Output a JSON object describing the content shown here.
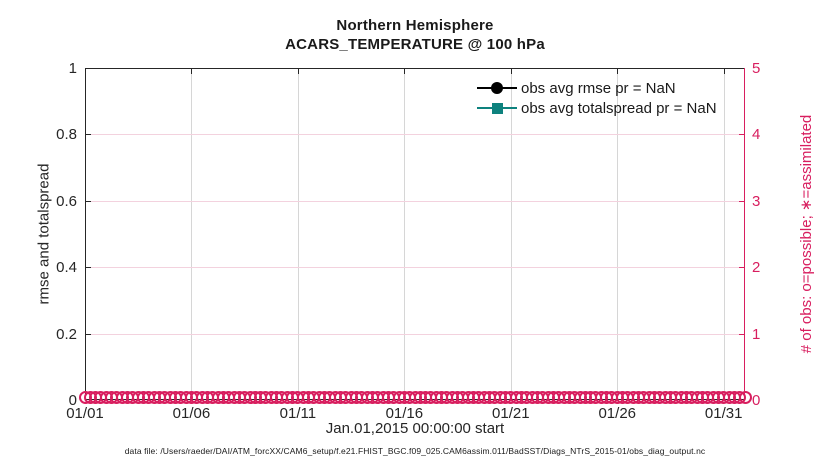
{
  "title": {
    "line1": "Northern Hemisphere",
    "line2": "ACARS_TEMPERATURE @ 100 hPa"
  },
  "axes": {
    "xlabel": "Jan.01,2015 00:00:00 start",
    "ylabel_left": "rmse and totalspread",
    "ylabel_right": "# of obs: o=possible; ∗=assimilated",
    "x_tick_labels": [
      "01/01",
      "01/06",
      "01/11",
      "01/16",
      "01/21",
      "01/26",
      "01/31"
    ],
    "y_left_tick_labels": [
      "0",
      "0.2",
      "0.4",
      "0.6",
      "0.8",
      "1"
    ],
    "y_right_tick_labels": [
      "0",
      "1",
      "2",
      "3",
      "4",
      "5"
    ]
  },
  "legend": [
    {
      "label": "obs avg rmse pr = NaN",
      "color": "#000000",
      "marker": "circle"
    },
    {
      "label": "obs avg totalspread pr = NaN",
      "color": "#0e827e",
      "marker": "square"
    }
  ],
  "footnote": "data file: /Users/raeder/DAI/ATM_forcXX/CAM6_setup/f.e21.FHIST_BGC.f09_025.CAM6assim.011/BadSST/Diags_NTrS_2015-01/obs_diag_output.nc",
  "colors": {
    "magenta": "#d81e5f",
    "teal": "#0e827e",
    "black_series": "#000000",
    "grid_vertical": "#d6d6d6",
    "grid_horizontal": "#f3d2de",
    "axis_dark": "#262626"
  },
  "chart_data": {
    "type": "line",
    "title": "Northern Hemisphere — ACARS_TEMPERATURE @ 100 hPa",
    "xlabel": "Jan.01,2015 00:00:00 start",
    "ylabel_left": "rmse and totalspread",
    "ylabel_right": "# of obs: o=possible; ∗=assimilated",
    "x_tick_labels": [
      "01/01",
      "01/06",
      "01/11",
      "01/16",
      "01/21",
      "01/26",
      "01/31"
    ],
    "x_range_days": [
      0,
      31
    ],
    "ylim_left": [
      0,
      1
    ],
    "ylim_right": [
      0,
      5
    ],
    "grid": true,
    "legend_position": "top-right-inside",
    "series": [
      {
        "name": "obs avg rmse pr = NaN",
        "axis": "left",
        "color": "#000000",
        "marker": "filled-circle",
        "values": [],
        "note": "NaN — no data plotted"
      },
      {
        "name": "obs avg totalspread pr = NaN",
        "axis": "left",
        "color": "#0e827e",
        "marker": "filled-square",
        "values": [],
        "note": "NaN — no data plotted"
      },
      {
        "name": "# of obs possible (o)",
        "axis": "right",
        "color": "#d81e5f",
        "marker": "open-circle",
        "constant_value": 0,
        "n_points": 125,
        "x_start_day": 0,
        "x_end_day": 31
      }
    ]
  }
}
